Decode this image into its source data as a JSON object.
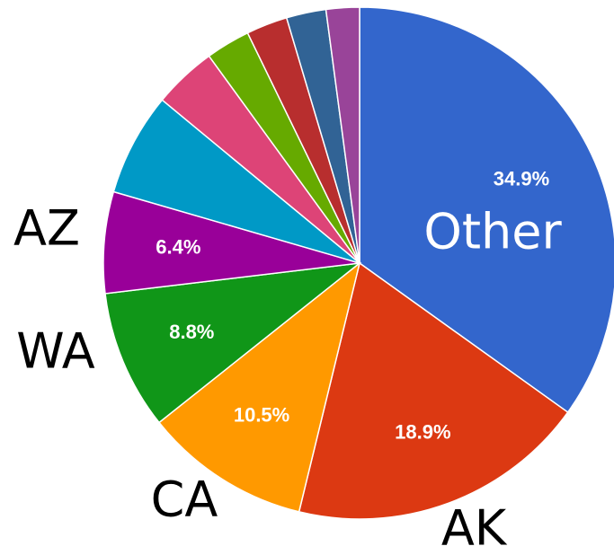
{
  "chart_data": {
    "type": "pie",
    "categories": [
      "Other",
      "AK",
      "CA",
      "WA",
      "AZ",
      null,
      null,
      null,
      null,
      null,
      null
    ],
    "values": [
      34.9,
      18.9,
      10.5,
      8.8,
      6.4,
      6.5,
      4.0,
      2.8,
      2.6,
      2.5,
      2.1
    ],
    "value_labels": [
      "34.9%",
      "18.9%",
      "10.5%",
      "8.8%",
      "6.4%",
      null,
      null,
      null,
      null,
      null,
      null
    ],
    "colors": [
      "#3366cc",
      "#dc3912",
      "#ff9900",
      "#109618",
      "#990099",
      "#0099c6",
      "#dd4477",
      "#66aa00",
      "#b82e2e",
      "#316395",
      "#994499"
    ]
  }
}
